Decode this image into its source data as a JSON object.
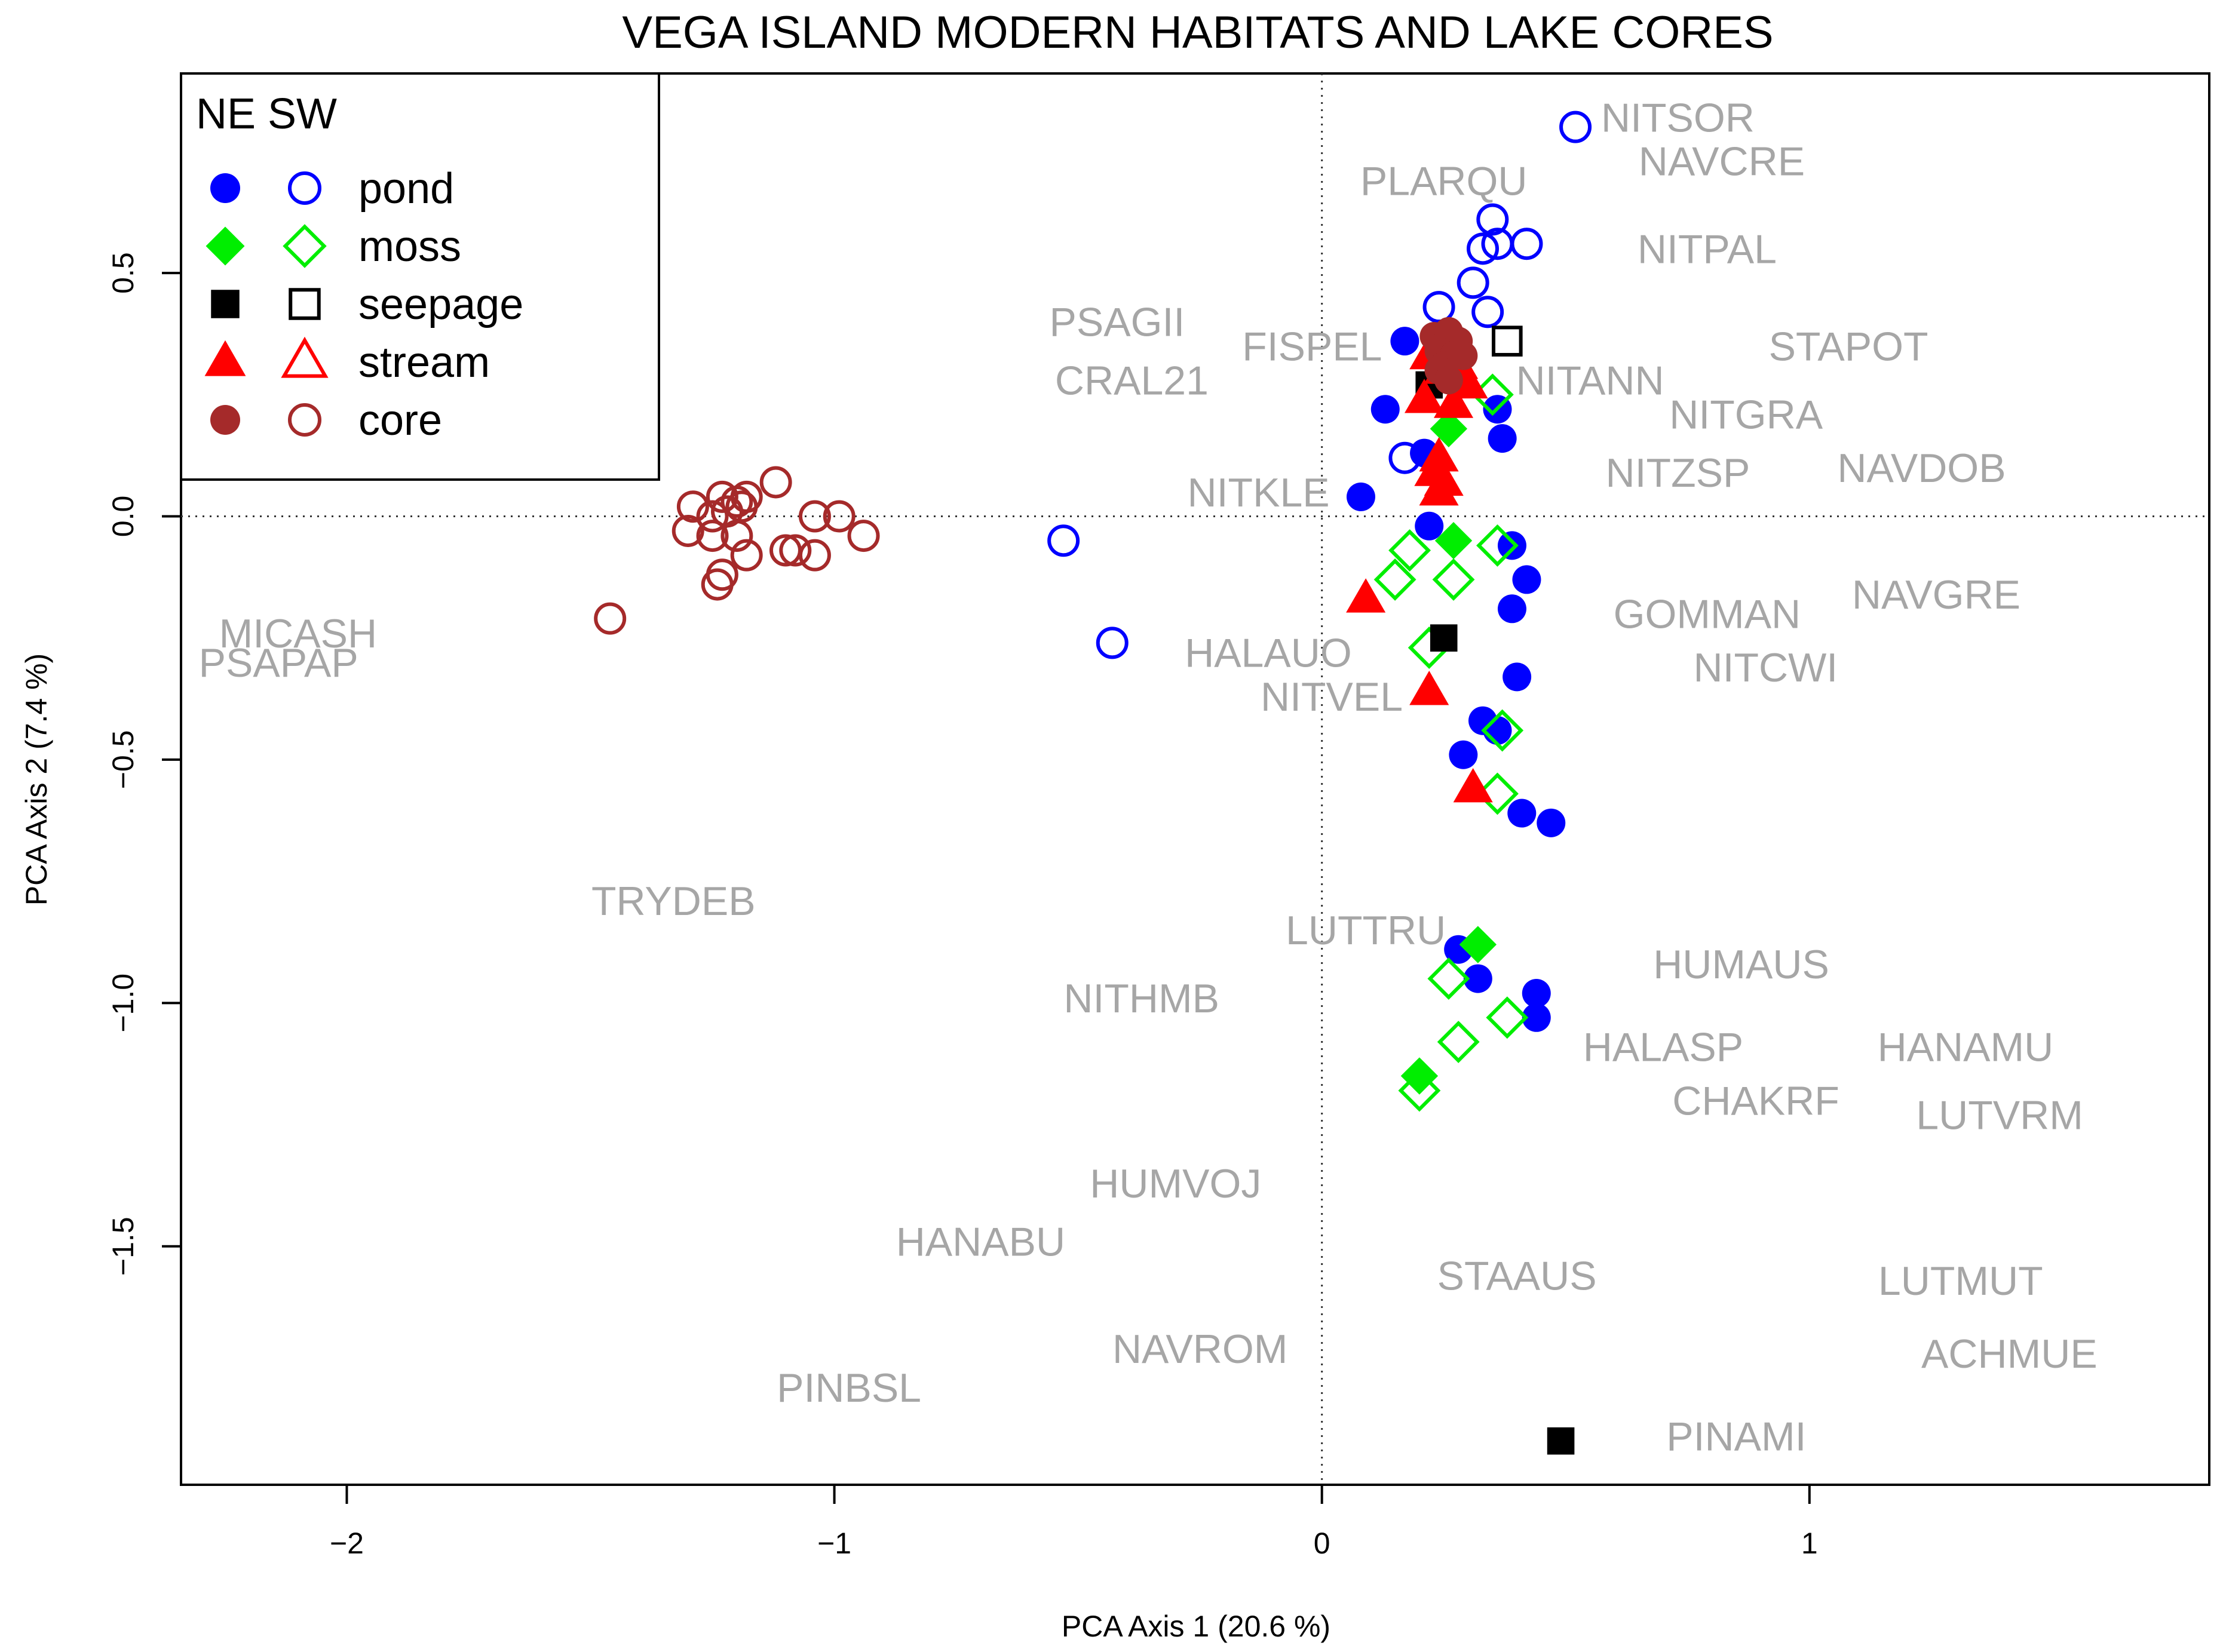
{
  "chart_data": {
    "type": "scatter",
    "title": "VEGA ISLAND MODERN HABITATS AND LAKE CORES",
    "xlabel": "PCA Axis 1 (20.6 %)",
    "ylabel": "PCA Axis 2 (7.4 %)",
    "xlim": [
      -2.34,
      1.82
    ],
    "ylim": [
      -1.99,
      0.91
    ],
    "x_ticks": [
      -2,
      -1,
      0,
      1
    ],
    "x_tick_labels": [
      "−2",
      "−1",
      "0",
      "1"
    ],
    "y_ticks": [
      -1.5,
      -1.0,
      -0.5,
      0.0,
      0.5
    ],
    "y_tick_labels": [
      "−1.5",
      "−1.0",
      "−0.5",
      "0.0",
      "0.5"
    ],
    "reference_lines": {
      "x": 0,
      "y": 0,
      "style": "dotted"
    },
    "grid": false,
    "legend": {
      "position": "top-left",
      "header": "NE SW",
      "entries": [
        {
          "label": "pond",
          "color": "#0000ff",
          "shape": "circle"
        },
        {
          "label": "moss",
          "color": "#00ee00",
          "shape": "diamond"
        },
        {
          "label": "seepage",
          "color": "#000000",
          "shape": "square"
        },
        {
          "label": "stream",
          "color": "#ff0000",
          "shape": "triangle"
        },
        {
          "label": "core",
          "color": "#a52a2a",
          "shape": "circle"
        }
      ]
    },
    "series": [
      {
        "name": "pond NE",
        "group": "pond",
        "filled": true,
        "color": "#0000ff",
        "shape": "circle",
        "points": [
          [
            0.17,
            0.36
          ],
          [
            0.13,
            0.22
          ],
          [
            0.24,
            0.29
          ],
          [
            0.21,
            0.13
          ],
          [
            0.08,
            0.04
          ],
          [
            0.22,
            -0.02
          ],
          [
            0.36,
            0.22
          ],
          [
            0.37,
            0.16
          ],
          [
            0.39,
            -0.06
          ],
          [
            0.42,
            -0.13
          ],
          [
            0.39,
            -0.19
          ],
          [
            0.4,
            -0.33
          ],
          [
            0.33,
            -0.42
          ],
          [
            0.36,
            -0.44
          ],
          [
            0.29,
            -0.49
          ],
          [
            0.41,
            -0.61
          ],
          [
            0.47,
            -0.63
          ],
          [
            0.28,
            -0.89
          ],
          [
            0.32,
            -0.95
          ],
          [
            0.44,
            -0.98
          ],
          [
            0.44,
            -1.03
          ]
        ]
      },
      {
        "name": "pond SW",
        "group": "pond",
        "filled": false,
        "color": "#0000ff",
        "shape": "circle",
        "points": [
          [
            0.52,
            0.8
          ],
          [
            0.35,
            0.61
          ],
          [
            0.33,
            0.55
          ],
          [
            0.36,
            0.56
          ],
          [
            0.42,
            0.56
          ],
          [
            0.31,
            0.48
          ],
          [
            0.24,
            0.43
          ],
          [
            0.34,
            0.42
          ],
          [
            0.17,
            0.12
          ],
          [
            -0.53,
            -0.05
          ],
          [
            -0.43,
            -0.26
          ]
        ]
      },
      {
        "name": "moss NE",
        "group": "moss",
        "filled": true,
        "color": "#00ee00",
        "shape": "diamond",
        "points": [
          [
            0.26,
            0.18
          ],
          [
            0.27,
            -0.05
          ],
          [
            0.32,
            -0.88
          ],
          [
            0.2,
            -1.15
          ]
        ]
      },
      {
        "name": "moss SW",
        "group": "moss",
        "filled": false,
        "color": "#00ee00",
        "shape": "diamond",
        "points": [
          [
            0.35,
            0.25
          ],
          [
            0.18,
            -0.07
          ],
          [
            0.15,
            -0.13
          ],
          [
            0.27,
            -0.13
          ],
          [
            0.36,
            -0.06
          ],
          [
            0.22,
            -0.27
          ],
          [
            0.37,
            -0.44
          ],
          [
            0.36,
            -0.57
          ],
          [
            0.26,
            -0.95
          ],
          [
            0.28,
            -1.08
          ],
          [
            0.38,
            -1.03
          ],
          [
            0.2,
            -1.18
          ]
        ]
      },
      {
        "name": "seepage NE",
        "group": "seepage",
        "filled": true,
        "color": "#000000",
        "shape": "square",
        "points": [
          [
            0.22,
            0.27
          ],
          [
            0.25,
            -0.25
          ],
          [
            0.49,
            -1.9
          ]
        ]
      },
      {
        "name": "seepage SW",
        "group": "seepage",
        "filled": false,
        "color": "#000000",
        "shape": "square",
        "points": [
          [
            0.38,
            0.36
          ]
        ]
      },
      {
        "name": "stream NE",
        "group": "stream",
        "filled": true,
        "color": "#ff0000",
        "shape": "triangle",
        "points": [
          [
            0.22,
            0.33
          ],
          [
            0.25,
            0.3
          ],
          [
            0.28,
            0.31
          ],
          [
            0.3,
            0.27
          ],
          [
            0.21,
            0.24
          ],
          [
            0.27,
            0.23
          ],
          [
            0.24,
            0.12
          ],
          [
            0.23,
            0.09
          ],
          [
            0.25,
            0.07
          ],
          [
            0.24,
            0.05
          ],
          [
            0.09,
            -0.17
          ],
          [
            0.22,
            -0.36
          ],
          [
            0.31,
            -0.56
          ]
        ]
      },
      {
        "name": "core NE",
        "group": "core",
        "filled": true,
        "color": "#a52a2a",
        "shape": "circle",
        "points": [
          [
            0.23,
            0.37
          ],
          [
            0.26,
            0.38
          ],
          [
            0.28,
            0.36
          ],
          [
            0.24,
            0.34
          ],
          [
            0.27,
            0.33
          ],
          [
            0.25,
            0.31
          ],
          [
            0.24,
            0.3
          ],
          [
            0.26,
            0.28
          ],
          [
            0.29,
            0.33
          ]
        ]
      },
      {
        "name": "core SW",
        "group": "core",
        "filled": false,
        "color": "#a52a2a",
        "shape": "circle",
        "points": [
          [
            -1.29,
            0.02
          ],
          [
            -1.23,
            0.04
          ],
          [
            -1.2,
            0.03
          ],
          [
            -1.18,
            0.04
          ],
          [
            -1.12,
            0.07
          ],
          [
            -1.25,
            0.0
          ],
          [
            -1.22,
            0.01
          ],
          [
            -1.19,
            0.02
          ],
          [
            -1.04,
            0.0
          ],
          [
            -0.99,
            0.0
          ],
          [
            -1.3,
            -0.03
          ],
          [
            -1.25,
            -0.04
          ],
          [
            -1.2,
            -0.04
          ],
          [
            -0.94,
            -0.04
          ],
          [
            -1.18,
            -0.08
          ],
          [
            -1.1,
            -0.07
          ],
          [
            -1.08,
            -0.07
          ],
          [
            -1.04,
            -0.08
          ],
          [
            -1.23,
            -0.12
          ],
          [
            -1.24,
            -0.14
          ],
          [
            -1.46,
            -0.21
          ]
        ]
      }
    ],
    "species_labels": [
      {
        "text": "NITSOR",
        "x": 0.73,
        "y": 0.82
      },
      {
        "text": "NAVCRE",
        "x": 0.82,
        "y": 0.73
      },
      {
        "text": "PLARQU",
        "x": 0.25,
        "y": 0.69
      },
      {
        "text": "NITPAL",
        "x": 0.79,
        "y": 0.55
      },
      {
        "text": "PSAGII",
        "x": -0.42,
        "y": 0.4
      },
      {
        "text": "FISPEL",
        "x": -0.02,
        "y": 0.35
      },
      {
        "text": "STAPOT",
        "x": 1.08,
        "y": 0.35
      },
      {
        "text": "CRAL21",
        "x": -0.39,
        "y": 0.28
      },
      {
        "text": "NITANN",
        "x": 0.55,
        "y": 0.28
      },
      {
        "text": "NITGRA",
        "x": 0.87,
        "y": 0.21
      },
      {
        "text": "NITZSP",
        "x": 0.73,
        "y": 0.09
      },
      {
        "text": "NAVDOB",
        "x": 1.23,
        "y": 0.1
      },
      {
        "text": "NITKLE",
        "x": -0.13,
        "y": 0.05
      },
      {
        "text": "NAVGRE",
        "x": 1.26,
        "y": -0.16
      },
      {
        "text": "GOMMAN",
        "x": 0.79,
        "y": -0.2
      },
      {
        "text": "MICASH",
        "x": -2.1,
        "y": -0.24
      },
      {
        "text": "PSAPAP",
        "x": -2.14,
        "y": -0.3
      },
      {
        "text": "HALAUO",
        "x": -0.11,
        "y": -0.28
      },
      {
        "text": "NITCWI",
        "x": 0.91,
        "y": -0.31
      },
      {
        "text": "NITVEL",
        "x": 0.02,
        "y": -0.37
      },
      {
        "text": "TRYDEB",
        "x": -1.33,
        "y": -0.79
      },
      {
        "text": "LUTTRU",
        "x": 0.09,
        "y": -0.85
      },
      {
        "text": "HUMAUS",
        "x": 0.86,
        "y": -0.92
      },
      {
        "text": "NITHMB",
        "x": -0.37,
        "y": -0.99
      },
      {
        "text": "HALASP",
        "x": 0.7,
        "y": -1.09
      },
      {
        "text": "HANAMU",
        "x": 1.32,
        "y": -1.09
      },
      {
        "text": "CHAKRF",
        "x": 0.89,
        "y": -1.2
      },
      {
        "text": "LUTVRM",
        "x": 1.39,
        "y": -1.23
      },
      {
        "text": "HUMVOJ",
        "x": -0.3,
        "y": -1.37
      },
      {
        "text": "HANABU",
        "x": -0.7,
        "y": -1.49
      },
      {
        "text": "STAAUS",
        "x": 0.4,
        "y": -1.56
      },
      {
        "text": "LUTMUT",
        "x": 1.31,
        "y": -1.57
      },
      {
        "text": "NAVROM",
        "x": -0.25,
        "y": -1.71
      },
      {
        "text": "ACHMUE",
        "x": 1.41,
        "y": -1.72
      },
      {
        "text": "PINBSL",
        "x": -0.97,
        "y": -1.79
      },
      {
        "text": "PINAMI",
        "x": 0.85,
        "y": -1.89
      }
    ]
  }
}
